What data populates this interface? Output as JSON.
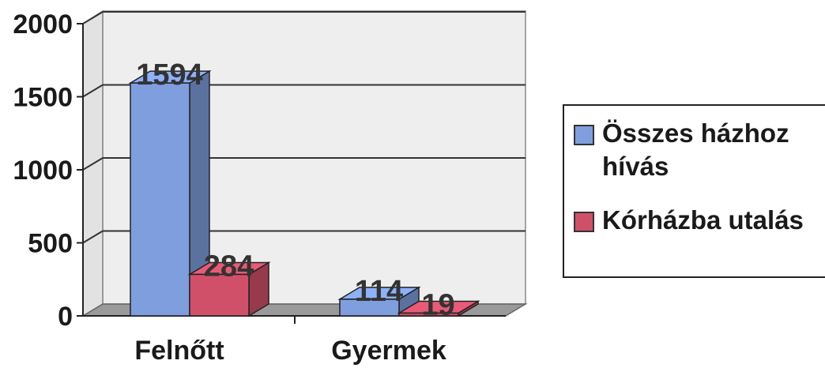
{
  "chart_data": {
    "type": "bar",
    "categories": [
      "Felnőtt",
      "Gyermek"
    ],
    "series": [
      {
        "name": "Összes házhoz hívás",
        "values": [
          1594,
          114
        ],
        "color": "#7f9ede"
      },
      {
        "name": "Kórházba utalás",
        "values": [
          284,
          19
        ],
        "color": "#d0506a"
      }
    ],
    "yticks": [
      "0",
      "500",
      "1000",
      "1500",
      "2000"
    ],
    "ylim": [
      0,
      2000
    ],
    "grid": true,
    "legend": "right"
  }
}
